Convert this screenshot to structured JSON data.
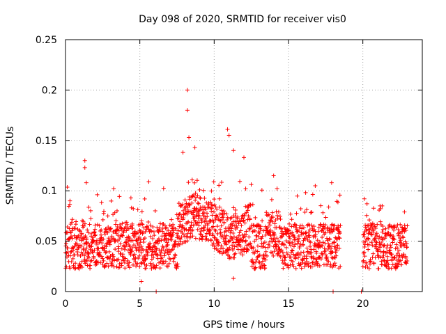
{
  "chart_data": {
    "type": "scatter",
    "title": "Day 098 of 2020, SRMTID for receiver vis0",
    "xlabel": "GPS time / hours",
    "ylabel": "SRMTID / TECUs",
    "xlim": [
      0,
      24
    ],
    "ylim": [
      0,
      0.25
    ],
    "xticks": [
      0,
      5,
      10,
      15,
      20
    ],
    "xtick_labels": [
      "0",
      "5",
      "10",
      "15",
      "20"
    ],
    "yticks": [
      0,
      0.05,
      0.1,
      0.15,
      0.2,
      0.25
    ],
    "ytick_labels": [
      "0",
      "0.05",
      "0.1",
      "0.15",
      "0.2",
      "0.25"
    ],
    "grid": true,
    "marker": "+",
    "color": "#ff0000",
    "data_gap_hours": [
      18.5,
      20.0
    ],
    "baseline_y": 0.045,
    "notable_points": [
      {
        "x": 0.3,
        "y": 0.09
      },
      {
        "x": 1.3,
        "y": 0.13
      },
      {
        "x": 1.3,
        "y": 0.123
      },
      {
        "x": 1.4,
        "y": 0.108
      },
      {
        "x": 4.4,
        "y": 0.093
      },
      {
        "x": 5.1,
        "y": 0.01
      },
      {
        "x": 5.6,
        "y": 0.109
      },
      {
        "x": 6.1,
        "y": 0.0
      },
      {
        "x": 7.9,
        "y": 0.138
      },
      {
        "x": 8.2,
        "y": 0.2
      },
      {
        "x": 8.2,
        "y": 0.18
      },
      {
        "x": 8.3,
        "y": 0.153
      },
      {
        "x": 8.7,
        "y": 0.143
      },
      {
        "x": 10.9,
        "y": 0.161
      },
      {
        "x": 11.0,
        "y": 0.155
      },
      {
        "x": 11.3,
        "y": 0.14
      },
      {
        "x": 12.0,
        "y": 0.133
      },
      {
        "x": 11.3,
        "y": 0.013
      },
      {
        "x": 14.0,
        "y": 0.115
      },
      {
        "x": 16.8,
        "y": 0.105
      },
      {
        "x": 17.9,
        "y": 0.108
      },
      {
        "x": 18.0,
        "y": 0.0
      },
      {
        "x": 19.9,
        "y": 0.0
      },
      {
        "x": 20.1,
        "y": 0.092
      },
      {
        "x": 21.3,
        "y": 0.085
      },
      {
        "x": 22.8,
        "y": 0.079
      }
    ]
  }
}
